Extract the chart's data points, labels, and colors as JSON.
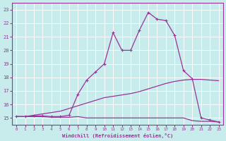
{
  "xlabel": "Windchill (Refroidissement éolien,°C)",
  "xlim": [
    -0.5,
    23.5
  ],
  "ylim": [
    14.5,
    23.5
  ],
  "yticks": [
    15,
    16,
    17,
    18,
    19,
    20,
    21,
    22,
    23
  ],
  "xticks": [
    0,
    1,
    2,
    3,
    4,
    5,
    6,
    7,
    8,
    9,
    10,
    11,
    12,
    13,
    14,
    15,
    16,
    17,
    18,
    19,
    20,
    21,
    22,
    23
  ],
  "bg_color": "#c8ecec",
  "line_color": "#993399",
  "grid_color": "#ffffff",
  "lines": [
    {
      "x": [
        0,
        1,
        2,
        3,
        4,
        5,
        6,
        7,
        8,
        9,
        10,
        11,
        12,
        13,
        14,
        15,
        16,
        17,
        18,
        19,
        20,
        21,
        22,
        23
      ],
      "y": [
        15.1,
        15.1,
        15.1,
        15.1,
        15.05,
        15.05,
        15.05,
        15.1,
        15.0,
        15.0,
        15.0,
        15.0,
        15.0,
        15.0,
        15.0,
        15.0,
        15.0,
        15.0,
        15.0,
        15.0,
        14.8,
        14.75,
        14.75,
        14.7
      ],
      "marker": null,
      "lw": 0.9
    },
    {
      "x": [
        0,
        1,
        2,
        3,
        4,
        5,
        6,
        7,
        8,
        9,
        10,
        11,
        12,
        13,
        14,
        15,
        16,
        17,
        18,
        19,
        20,
        21,
        22,
        23
      ],
      "y": [
        15.1,
        15.1,
        15.2,
        15.3,
        15.4,
        15.5,
        15.7,
        15.9,
        16.1,
        16.3,
        16.5,
        16.6,
        16.7,
        16.8,
        16.95,
        17.15,
        17.35,
        17.55,
        17.7,
        17.8,
        17.85,
        17.85,
        17.8,
        17.75
      ],
      "marker": null,
      "lw": 0.9
    },
    {
      "x": [
        0,
        1,
        2,
        3,
        4,
        5,
        6,
        7,
        8,
        9,
        10,
        11,
        12,
        13,
        14,
        15,
        16,
        17,
        18,
        19,
        20,
        21,
        22,
        23
      ],
      "y": [
        15.1,
        15.1,
        15.15,
        15.15,
        15.1,
        15.1,
        15.2,
        16.75,
        17.8,
        18.4,
        19.0,
        21.3,
        20.0,
        20.0,
        21.5,
        22.8,
        22.3,
        22.2,
        21.1,
        18.5,
        17.9,
        15.0,
        14.85,
        14.7
      ],
      "marker": "+",
      "lw": 0.9
    }
  ]
}
